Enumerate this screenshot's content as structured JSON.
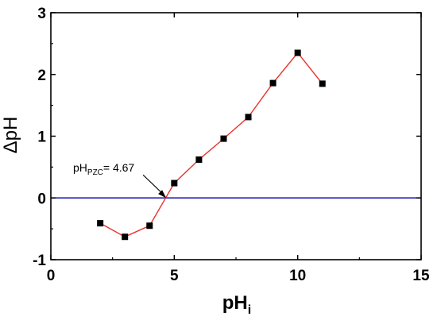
{
  "chart_data": {
    "type": "line",
    "title": "",
    "xlabel": "pH",
    "xlabel_subscript": "i",
    "ylabel": "ΔpH",
    "xlim": [
      0,
      15
    ],
    "ylim": [
      -1,
      3
    ],
    "xticks": [
      0,
      5,
      10,
      15
    ],
    "yticks": [
      -1,
      0,
      1,
      2,
      3
    ],
    "grid": false,
    "series": [
      {
        "x": [
          2,
          3,
          4,
          5,
          6,
          7,
          8,
          9,
          10,
          11
        ],
        "y": [
          -0.41,
          -0.63,
          -0.45,
          0.24,
          0.62,
          0.96,
          1.31,
          1.86,
          2.35,
          1.85
        ],
        "line_color": "#e8322c",
        "marker": "square",
        "marker_color": "#000000"
      }
    ],
    "reference_line": {
      "y": 0,
      "color": "#2a2ab8"
    },
    "annotation": {
      "text_main": "pH",
      "text_sub": "PZC",
      "text_value": "= 4.67",
      "point": [
        4.67,
        0
      ]
    }
  }
}
